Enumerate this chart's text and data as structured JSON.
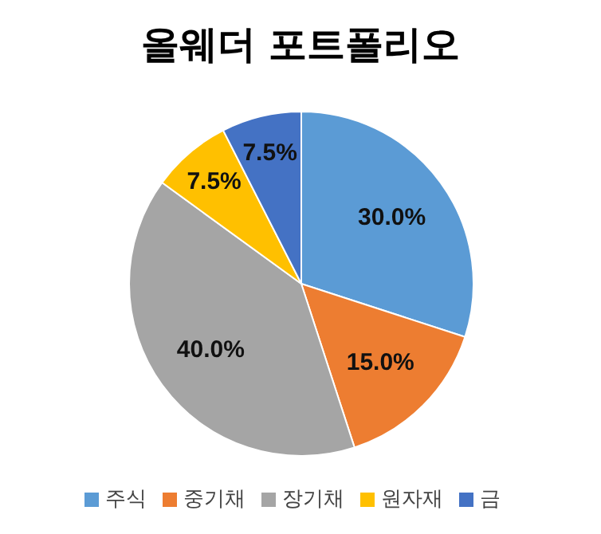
{
  "chart_data": {
    "type": "pie",
    "title": "올웨더 포트폴리오",
    "categories": [
      "주식",
      "중기채",
      "장기채",
      "원자재",
      "금"
    ],
    "values": [
      30,
      15,
      40,
      7.5,
      7.5
    ],
    "value_labels": [
      "30.0%",
      "15.0%",
      "40.0%",
      "7.5%",
      "7.5%"
    ],
    "colors": [
      "#5b9bd5",
      "#ed7d31",
      "#a5a5a5",
      "#ffc000",
      "#4472c4"
    ],
    "legend": "bottom"
  }
}
